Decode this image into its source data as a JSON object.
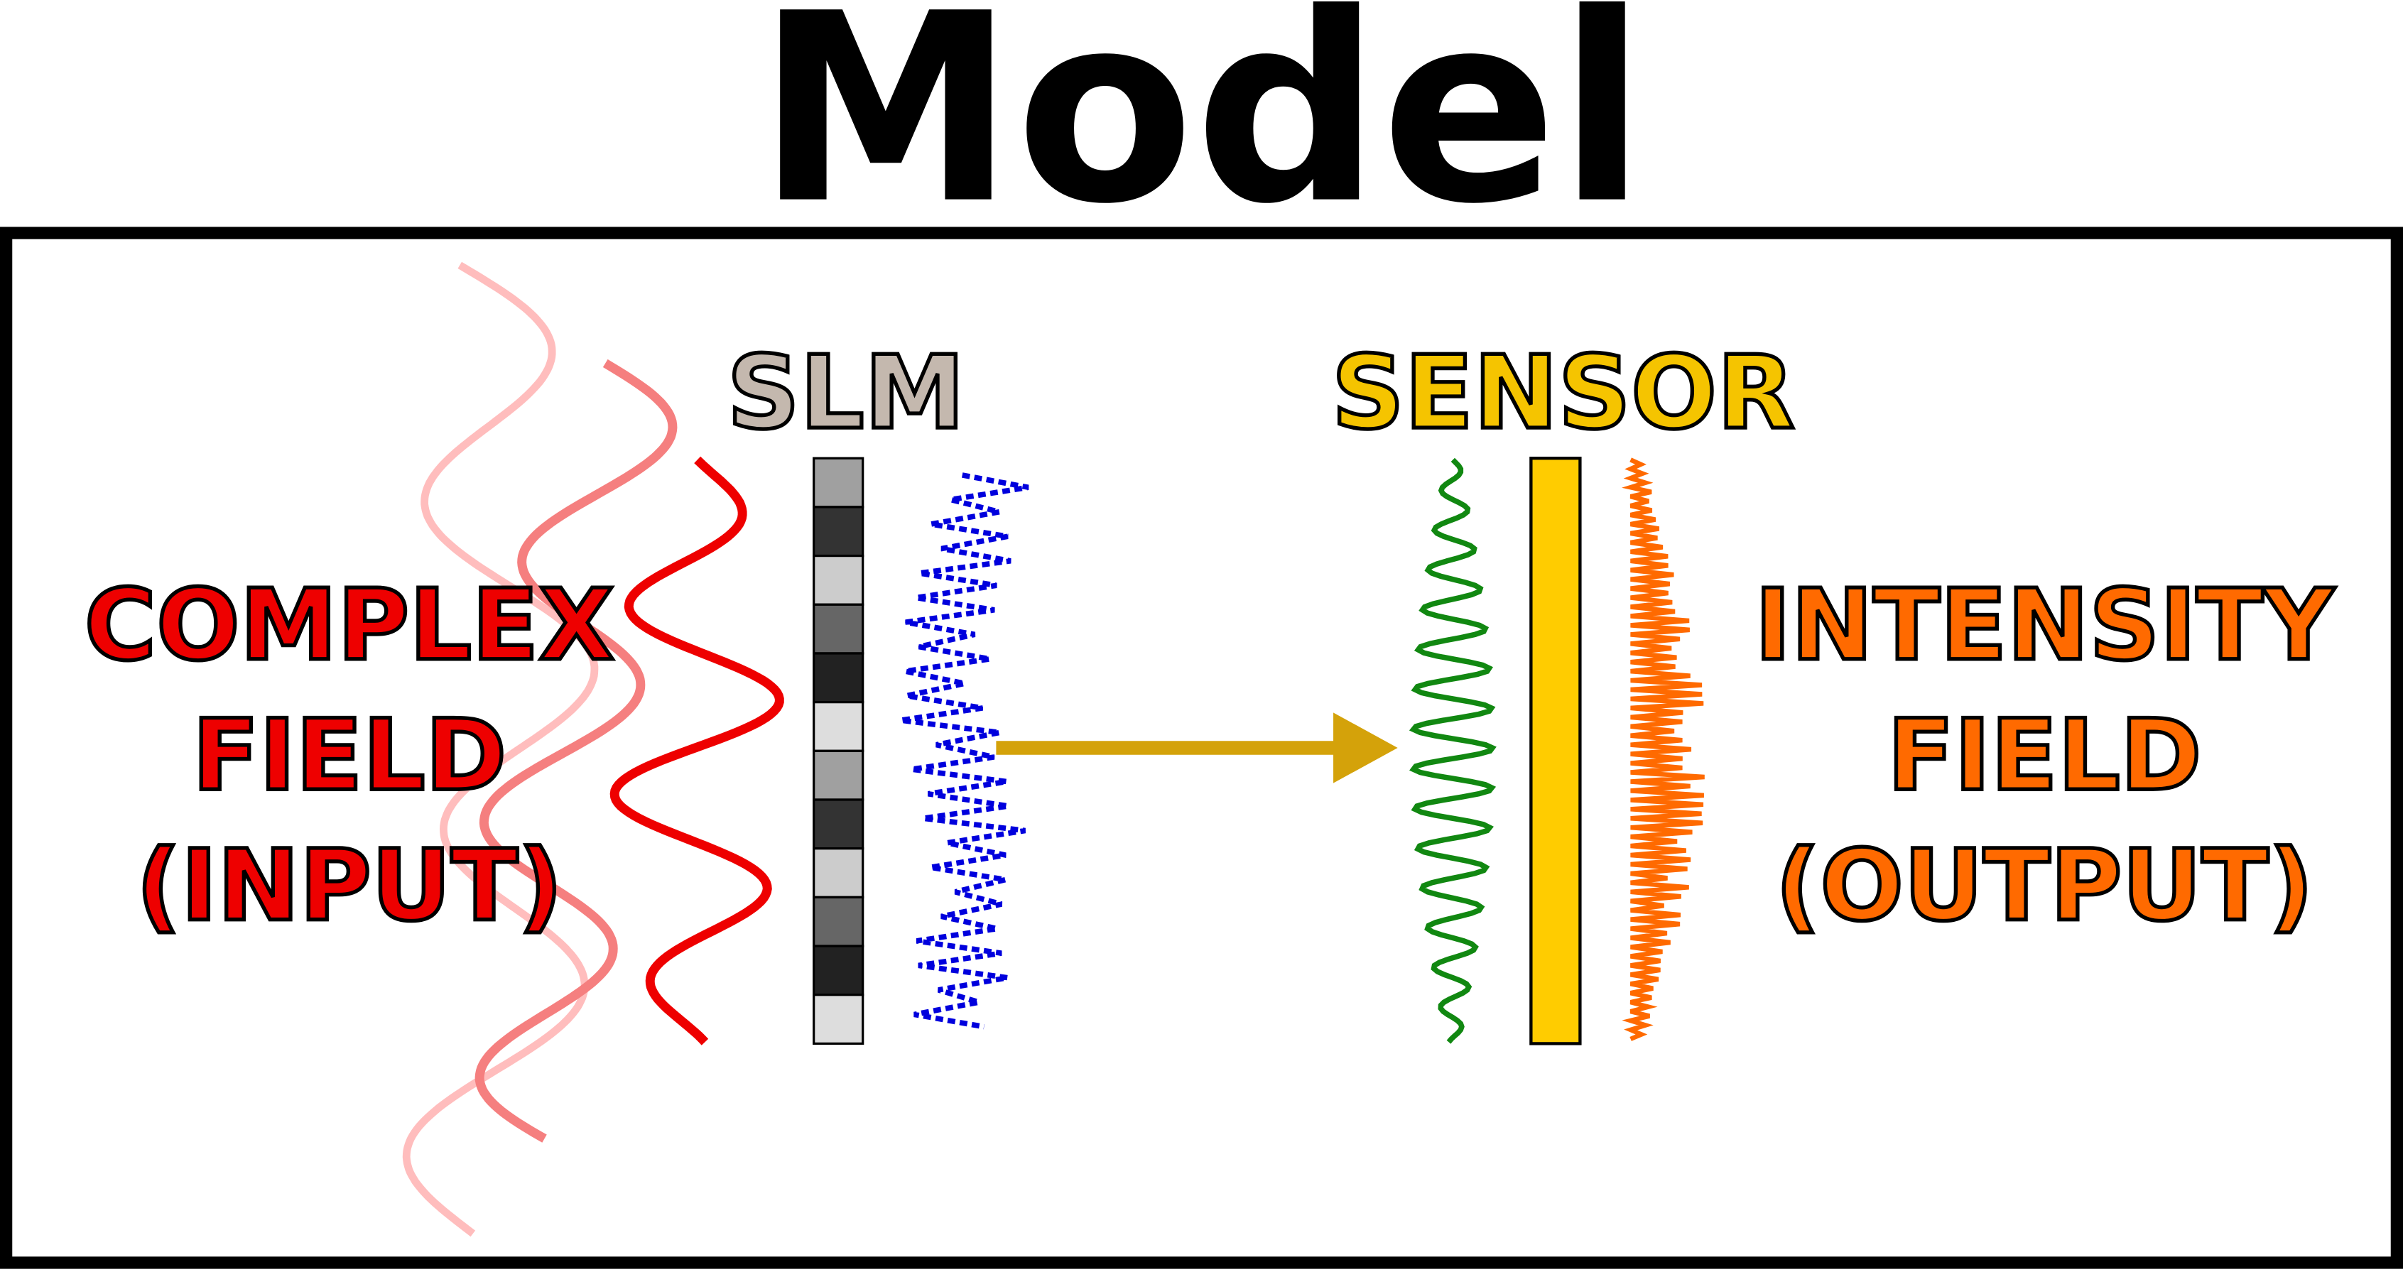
{
  "title": "Model",
  "components": [
    {
      "label": "SLM"
    },
    {
      "label": "SENSOR"
    }
  ],
  "input": {
    "lines": [
      "COMPLEX",
      "FIELD",
      "(INPUT)"
    ]
  },
  "output": {
    "lines": [
      "INTENSITY",
      "FIELD",
      "(OUTPUT)"
    ]
  }
}
